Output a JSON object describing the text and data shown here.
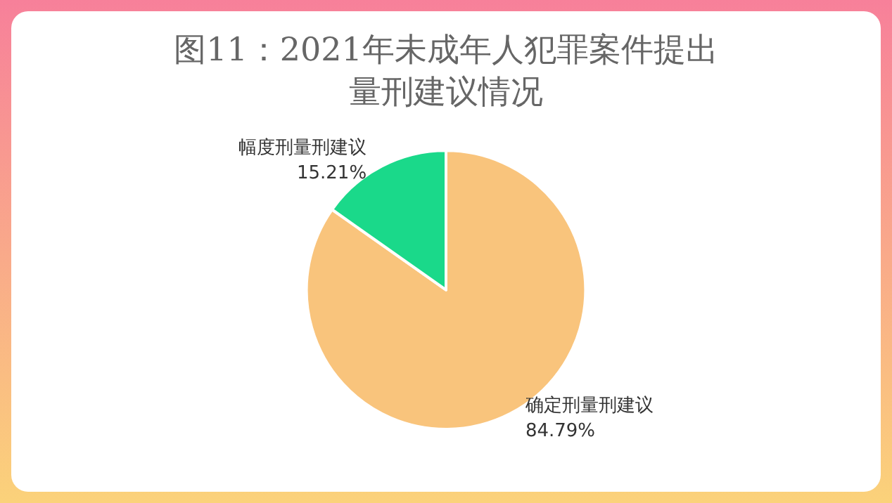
{
  "chart_data": {
    "type": "pie",
    "title": "图11：2021年未成年人犯罪案件提出量刑建议情况",
    "categories": [
      "确定刑量刑建议",
      "幅度刑量刑建议"
    ],
    "values": [
      84.79,
      15.21
    ],
    "value_labels": [
      "84.79%",
      "15.21%"
    ],
    "colors": [
      "#f9c47c",
      "#1ad98a"
    ],
    "legend": false
  }
}
